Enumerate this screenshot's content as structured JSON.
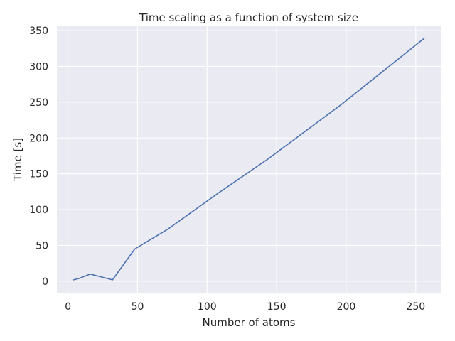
{
  "chart_data": {
    "type": "line",
    "title": "Time scaling as a function of system size",
    "xlabel": "Number of atoms",
    "ylabel": "Time [s]",
    "xlim": [
      -8,
      268
    ],
    "ylim": [
      -17,
      357
    ],
    "xticks": [
      0,
      50,
      100,
      150,
      200,
      250
    ],
    "yticks": [
      0,
      50,
      100,
      150,
      200,
      250,
      300,
      350
    ],
    "grid": true,
    "background_color": "#eaeaf2",
    "grid_color": "#ffffff",
    "series": [
      {
        "color": "#4c72b0",
        "x": [
          4,
          8,
          16,
          32,
          48,
          72,
          108,
          144,
          196,
          256
        ],
        "y": [
          2,
          4,
          10,
          2,
          45,
          73,
          123,
          171,
          246,
          339
        ]
      }
    ]
  }
}
